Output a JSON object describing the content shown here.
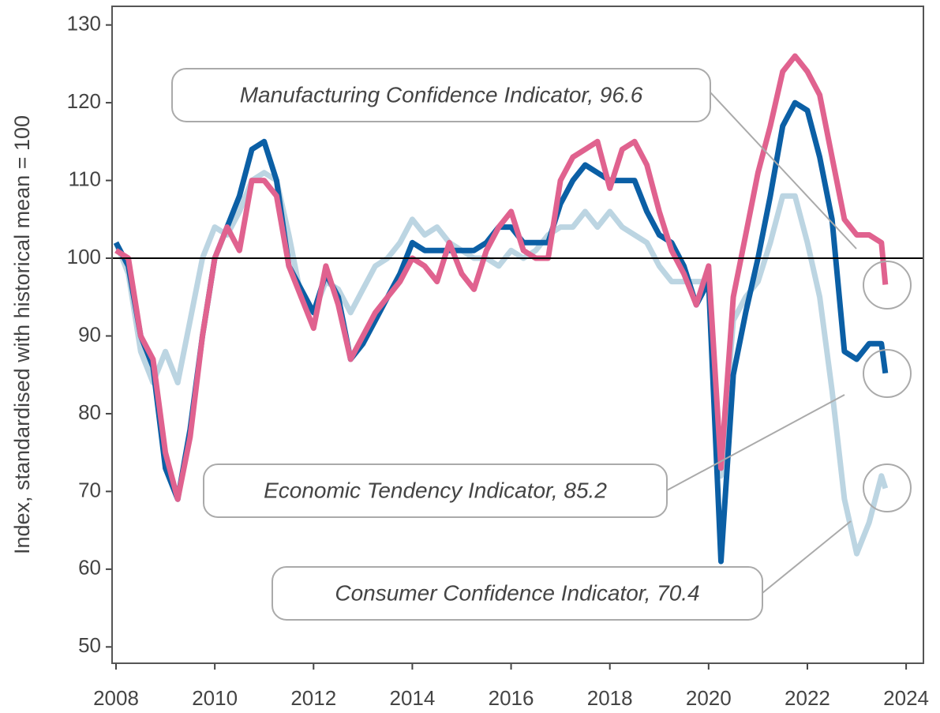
{
  "chart_data": {
    "type": "line",
    "y_label": "Index, standardised with historical mean = 100",
    "x": [
      2008.0,
      2008.25,
      2008.5,
      2008.75,
      2009.0,
      2009.25,
      2009.5,
      2009.75,
      2010.0,
      2010.25,
      2010.5,
      2010.75,
      2011.0,
      2011.25,
      2011.5,
      2011.75,
      2012.0,
      2012.25,
      2012.5,
      2012.75,
      2013.0,
      2013.25,
      2013.5,
      2013.75,
      2014.0,
      2014.25,
      2014.5,
      2014.75,
      2015.0,
      2015.25,
      2015.5,
      2015.75,
      2016.0,
      2016.25,
      2016.5,
      2016.75,
      2017.0,
      2017.25,
      2017.5,
      2017.75,
      2018.0,
      2018.25,
      2018.5,
      2018.75,
      2019.0,
      2019.25,
      2019.5,
      2019.75,
      2020.0,
      2020.25,
      2020.5,
      2020.75,
      2021.0,
      2021.25,
      2021.5,
      2021.75,
      2022.0,
      2022.25,
      2022.5,
      2022.75,
      2023.0,
      2023.25,
      2023.5,
      2023.58
    ],
    "series": [
      {
        "color": "#bcd5e2",
        "values": [
          102,
          98,
          88,
          84,
          88,
          84,
          92,
          100,
          104,
          103,
          106,
          110,
          111,
          110,
          103,
          95,
          93,
          97,
          96,
          93,
          96,
          99,
          100,
          102,
          105,
          103,
          104,
          102,
          101,
          100,
          100,
          99,
          101,
          100,
          101,
          103,
          104,
          104,
          106,
          104,
          106,
          104,
          103,
          102,
          99,
          97,
          97,
          97,
          97,
          72,
          92,
          95,
          97,
          102,
          108,
          108,
          102,
          95,
          83,
          69,
          62,
          66,
          72,
          70.4
        ]
      },
      {
        "color": "#0b5fa5",
        "values": [
          102,
          99,
          90,
          86,
          73,
          69,
          78,
          90,
          100,
          104,
          108,
          114,
          115,
          110,
          99,
          96,
          93,
          98,
          95,
          87,
          89,
          92,
          95,
          98,
          102,
          101,
          101,
          101,
          101,
          101,
          102,
          104,
          104,
          102,
          102,
          102,
          107,
          110,
          112,
          111,
          110,
          110,
          110,
          106,
          103,
          102,
          99,
          94,
          97,
          61,
          85,
          93,
          100,
          108,
          117,
          120,
          119,
          113,
          105,
          88,
          87,
          89,
          89,
          85.2
        ]
      },
      {
        "color": "#e0628f",
        "values": [
          101,
          100,
          90,
          87,
          75,
          69,
          77,
          90,
          100,
          104,
          101,
          110,
          110,
          108,
          99,
          95,
          91,
          99,
          94,
          87,
          90,
          93,
          95,
          97,
          100,
          99,
          97,
          102,
          98,
          96,
          101,
          104,
          106,
          101,
          100,
          100,
          110,
          113,
          114,
          115,
          109,
          114,
          115,
          112,
          106,
          101,
          98,
          94,
          99,
          73,
          95,
          103,
          111,
          117,
          124,
          126,
          124,
          121,
          113,
          105,
          103,
          103,
          102,
          96.6
        ]
      }
    ],
    "annotations": [
      "Consumer Confidence Indicator, 70.4",
      "Economic Tendency Indicator, 85.2",
      "Manufacturing Confidence Indicator, 96.6"
    ],
    "hline": 100,
    "xlim": [
      2007.92,
      2024.35
    ],
    "xticks": [
      2008,
      2010,
      2012,
      2014,
      2016,
      2018,
      2020,
      2022,
      2024
    ],
    "ylim": [
      47.9,
      132.4
    ],
    "yticks": [
      50,
      60,
      70,
      80,
      90,
      100,
      110,
      120,
      130
    ]
  }
}
